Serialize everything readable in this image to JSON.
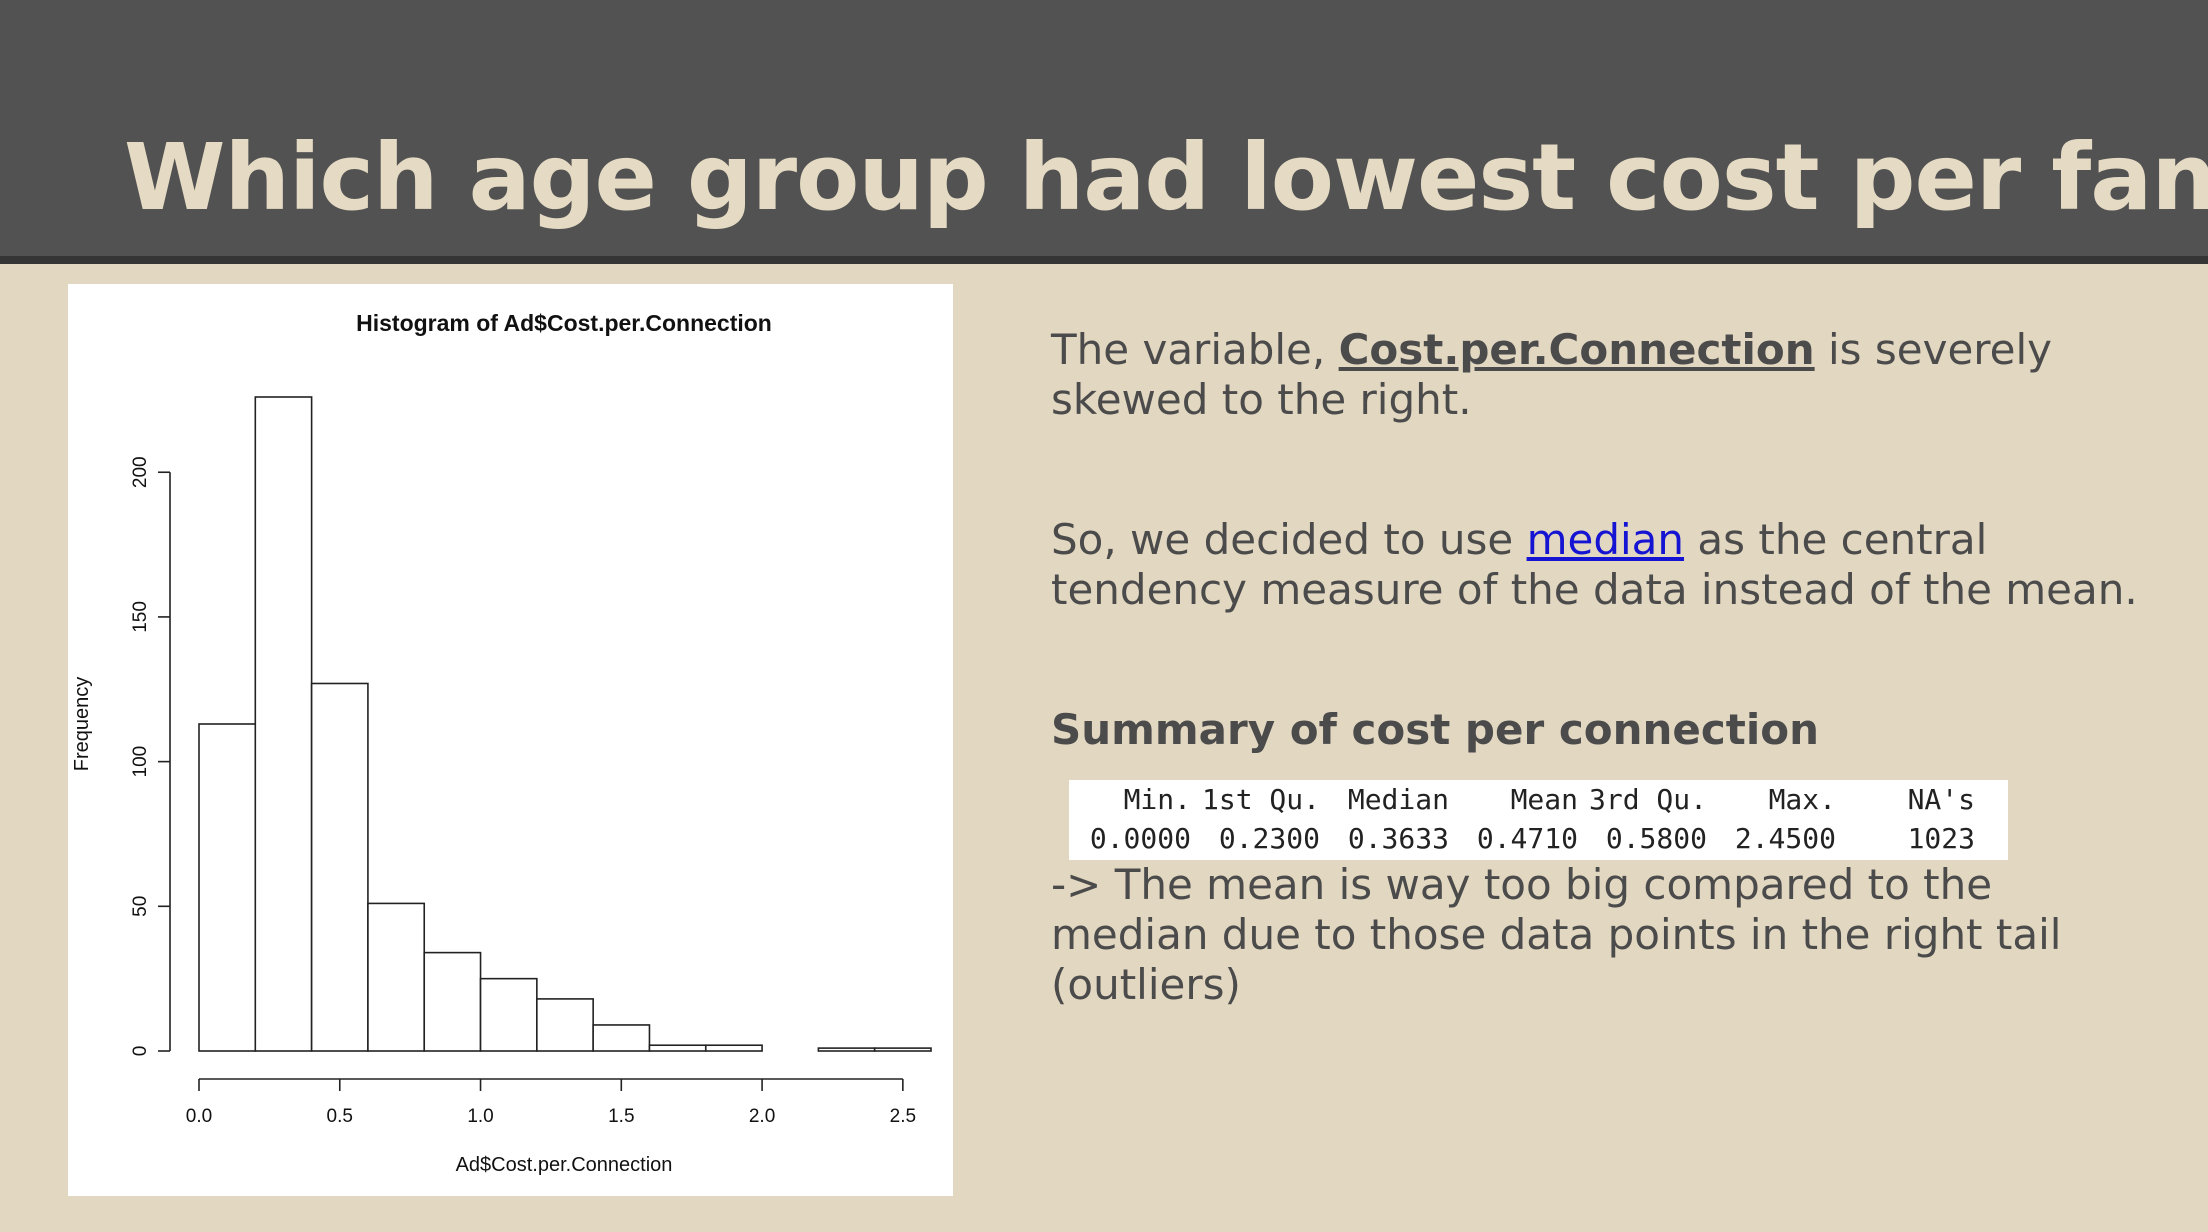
{
  "slide": {
    "title": "Which age group had lowest cost per fan?"
  },
  "text": {
    "p1_prefix": "The variable, ",
    "p1_keyword": "Cost.per.Connection",
    "p1_suffix": " is severely skewed to the right.",
    "p2_prefix": "So, we decided to use ",
    "p2_link": "median",
    "p2_suffix": " as the central tendency measure of the data instead of the mean.",
    "summary_heading": "Summary of cost per connection",
    "conclusion": "-> The mean is way too big compared to the median due to those data points in the right tail (outliers)"
  },
  "summary_table": {
    "headers": [
      "Min.",
      "1st Qu.",
      "Median",
      "Mean",
      "3rd Qu.",
      "Max.",
      "NA's"
    ],
    "values": [
      "0.0000",
      "0.2300",
      "0.3633",
      "0.4710",
      "0.5800",
      "2.4500",
      "1023"
    ]
  },
  "colors": {
    "background": "#e2d7c1",
    "header": "#525252",
    "title": "#e5dac3",
    "body_text": "#4b4b4b",
    "link": "#1414d2"
  },
  "chart_data": {
    "type": "bar",
    "title": "Histogram of Ad$Cost.per.Connection",
    "xlabel": "Ad$Cost.per.Connection",
    "ylabel": "Frequency",
    "bin_edges": [
      0.0,
      0.2,
      0.4,
      0.6,
      0.8,
      1.0,
      1.2,
      1.4,
      1.6,
      1.8,
      2.0,
      2.2,
      2.4,
      2.6
    ],
    "values": [
      113,
      226,
      127,
      51,
      34,
      25,
      18,
      9,
      2,
      2,
      0,
      1,
      1
    ],
    "xlim": [
      0.0,
      2.6
    ],
    "ylim": [
      0,
      226
    ],
    "xticks": [
      "0.0",
      "0.5",
      "1.0",
      "1.5",
      "2.0",
      "2.5"
    ],
    "yticks": [
      "0",
      "50",
      "100",
      "150",
      "200"
    ],
    "grid": false,
    "legend": "none"
  }
}
